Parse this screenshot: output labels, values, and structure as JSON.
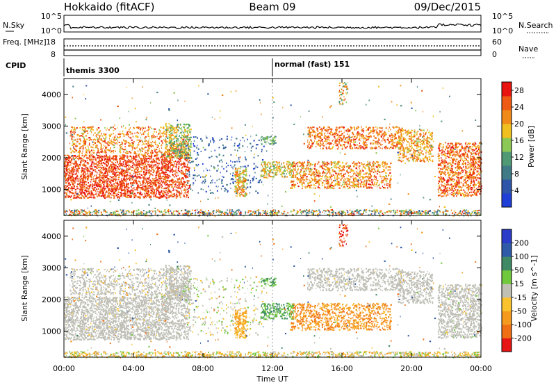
{
  "header": {
    "radar": "Hokkaido (fitACF)",
    "beam": "Beam 09",
    "date": "09/Dec/2015"
  },
  "colors": {
    "power_scale": [
      "#1f3fd6",
      "#2f55a8",
      "#3f7a86",
      "#4f9a74",
      "#8cc855",
      "#f0c020",
      "#f08a18",
      "#ef5a14",
      "#e8140f"
    ],
    "velocity_scale": [
      "#e61414",
      "#f06e14",
      "#f59a1e",
      "#fac32d",
      "#c0c0b4",
      "#70c83c",
      "#3f8a64",
      "#2f5aa8",
      "#2a3cc8"
    ],
    "ground_scatter": "#bdbdb5"
  },
  "chart_data": [
    {
      "type": "line",
      "panel": "noise",
      "ylabel_left": "N.Sky",
      "ylabel_right": "N.Search",
      "left_ticks": [
        "10^5",
        "10^0"
      ],
      "right_ticks": [
        "10^5",
        "10^0"
      ],
      "xlim": [
        "00:00",
        "24:00"
      ]
    },
    {
      "type": "line",
      "panel": "frequency",
      "ylabel_left": "Freq. [MHz]",
      "ylabel_right": "Nave",
      "left_ticks": [
        18,
        8
      ],
      "right_ticks": [
        60,
        0
      ],
      "ylim_left": [
        8,
        18
      ],
      "ylim_right": [
        0,
        60
      ]
    },
    {
      "type": "table",
      "panel": "cpid",
      "label": "CPID",
      "segments": [
        {
          "start": "00:00",
          "end": "12:00",
          "name": "themis 3300"
        },
        {
          "start": "12:00",
          "end": "24:00",
          "name": "normal (fast) 151"
        }
      ]
    },
    {
      "type": "heatmap",
      "panel": "power",
      "ylabel": "Slant Range [km]",
      "yticks": [
        1000,
        2000,
        3000,
        4000
      ],
      "ylim": [
        180,
        4500
      ],
      "colorbar_label": "Power [dB]",
      "colorbar_ticks": [
        4,
        8,
        12,
        16,
        20,
        24,
        28
      ],
      "colorbar_range": [
        0,
        30
      ]
    },
    {
      "type": "heatmap",
      "panel": "velocity",
      "ylabel": "Slant Range [km]",
      "yticks": [
        1000,
        2000,
        3000,
        4000
      ],
      "ylim": [
        180,
        4500
      ],
      "colorbar_label": "Velocity [m s^-1]",
      "colorbar_ticks": [
        -200,
        -100,
        -50,
        -15,
        15,
        50,
        100,
        200
      ],
      "xlabel": "Time UT",
      "xticks": [
        "00:00",
        "04:00",
        "08:00",
        "12:00",
        "16:00",
        "20:00",
        "00:00"
      ],
      "xlim": [
        0,
        24
      ]
    }
  ]
}
